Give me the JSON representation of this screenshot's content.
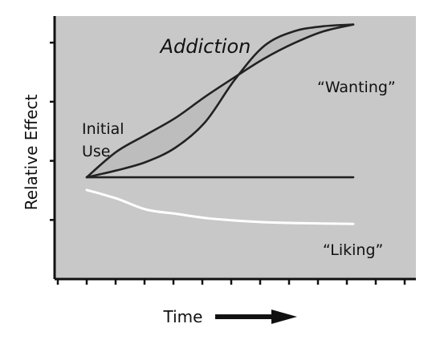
{
  "chart_data": {
    "type": "line",
    "title": "Addiction",
    "xlabel": "Time",
    "ylabel": "Relative Effect",
    "annotations": {
      "initial_use_line1": "Initial",
      "initial_use_line2": "Use"
    },
    "x": [
      0,
      1,
      2,
      3,
      4,
      5,
      6,
      7,
      8,
      9
    ],
    "xlim": [
      0,
      9.9
    ],
    "ylim": [
      0,
      3.1
    ],
    "series": [
      {
        "name": "“Wanting”",
        "color": "#222222",
        "values": [
          1.2,
          1.5,
          1.7,
          1.9,
          2.15,
          2.38,
          2.6,
          2.78,
          2.92,
          3.0
        ]
      },
      {
        "name": "“Wanting”",
        "color": "#222222",
        "values": [
          1.2,
          1.28,
          1.38,
          1.55,
          1.85,
          2.35,
          2.75,
          2.92,
          2.98,
          3.0
        ]
      },
      {
        "name": "",
        "color": "#222222",
        "values": [
          1.2,
          1.2,
          1.2,
          1.2,
          1.2,
          1.2,
          1.2,
          1.2,
          1.2,
          1.2
        ]
      },
      {
        "name": "“Liking”",
        "color": "#ffffff",
        "values": [
          1.05,
          0.95,
          0.82,
          0.77,
          0.72,
          0.69,
          0.67,
          0.66,
          0.655,
          0.65
        ]
      }
    ],
    "wanting_label": "“Wanting”",
    "liking_label": "“Liking”",
    "colors": {
      "plot_background": "#c8c8c8",
      "axis": "#111111",
      "fill_between_wanting": "#bdbdbd",
      "arrow": "#111111"
    },
    "grid": false,
    "y_ticks": 4,
    "x_ticks": 13
  }
}
